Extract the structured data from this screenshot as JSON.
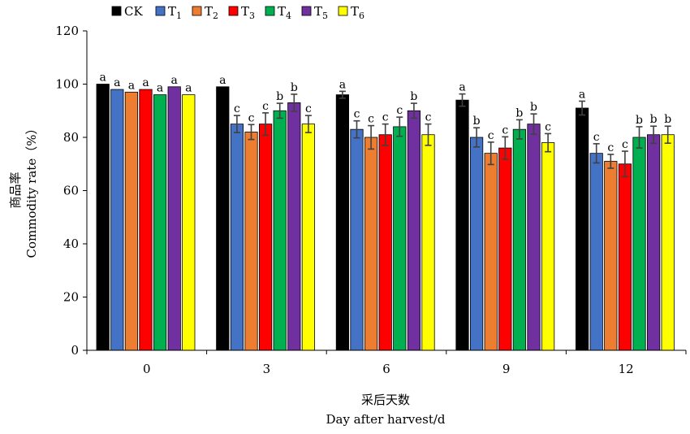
{
  "chart_data": {
    "type": "bar",
    "categories": [
      "0",
      "3",
      "6",
      "9",
      "12"
    ],
    "series": [
      {
        "name": "CK",
        "sub": "",
        "color": "#000000",
        "values": [
          100,
          99,
          96,
          94,
          91
        ],
        "errors": [
          0,
          0,
          1.3,
          2.3,
          2.6
        ],
        "labels": [
          "a",
          "a",
          "a",
          "a",
          "a"
        ]
      },
      {
        "name": "T",
        "sub": "1",
        "color": "#4472C4",
        "values": [
          98,
          85,
          83,
          80,
          74
        ],
        "errors": [
          0,
          3.2,
          3.2,
          3.6,
          3.6
        ],
        "labels": [
          "a",
          "c",
          "c",
          "b",
          "c"
        ]
      },
      {
        "name": "T",
        "sub": "2",
        "color": "#ED7D31",
        "values": [
          97,
          82,
          80,
          74,
          71
        ],
        "errors": [
          0,
          2.8,
          4.4,
          4.2,
          2.6
        ],
        "labels": [
          "a",
          "c",
          "c",
          "c",
          "c"
        ]
      },
      {
        "name": "T",
        "sub": "3",
        "color": "#FF0000",
        "values": [
          98,
          85,
          81,
          76,
          70
        ],
        "errors": [
          0,
          4.2,
          4.0,
          4.2,
          4.8
        ],
        "labels": [
          "a",
          "c",
          "c",
          "c",
          "c"
        ]
      },
      {
        "name": "T",
        "sub": "4",
        "color": "#00B050",
        "values": [
          96,
          90,
          84,
          83,
          80
        ],
        "errors": [
          0,
          2.8,
          3.6,
          3.6,
          4.0
        ],
        "labels": [
          "a",
          "b",
          "c",
          "b",
          "b"
        ]
      },
      {
        "name": "T",
        "sub": "5",
        "color": "#7030A0",
        "values": [
          99,
          93,
          90,
          85,
          81
        ],
        "errors": [
          0,
          3.2,
          2.8,
          3.8,
          3.2
        ],
        "labels": [
          "a",
          "b",
          "b",
          "b",
          "b"
        ]
      },
      {
        "name": "T",
        "sub": "6",
        "color": "#FFFF00",
        "values": [
          96,
          85,
          81,
          78,
          81
        ],
        "errors": [
          0,
          3.2,
          4.0,
          3.4,
          3.2
        ],
        "labels": [
          "a",
          "c",
          "c",
          "c",
          "b"
        ]
      }
    ],
    "ylim": [
      0,
      120
    ],
    "yticks": [
      0,
      20,
      40,
      60,
      80,
      100,
      120
    ],
    "ylabel_cn": "商品率",
    "ylabel_en": "Commodity rate（%）",
    "xlabel_cn": "采后天数",
    "xlabel_en": "Day after harvest/d",
    "grid": false,
    "legend": "top-left"
  }
}
